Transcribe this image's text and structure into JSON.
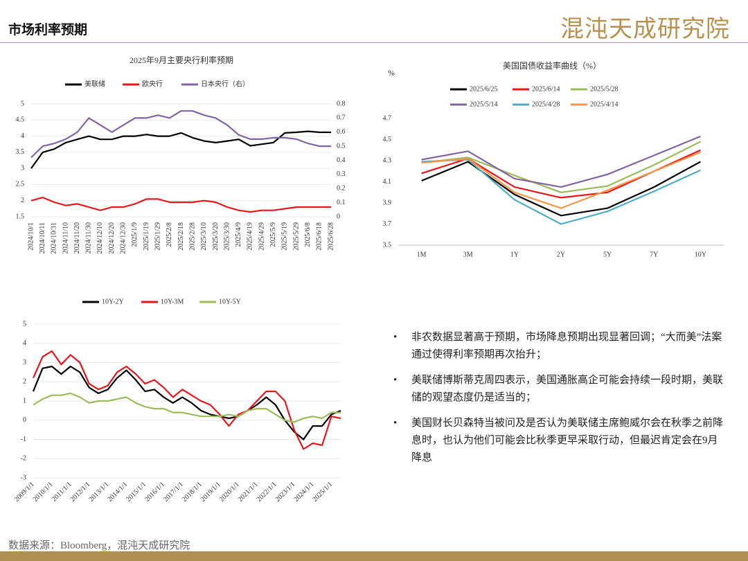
{
  "header": {
    "title": "市场利率预期",
    "logo": "混沌天成研究院"
  },
  "chart_data": [
    {
      "type": "line",
      "title": "2025年9月主要央行利率预期",
      "categories": [
        "2024/10/1",
        "2024/10/11",
        "2024/10/31",
        "2024/11/10",
        "2024/11/20",
        "2024/11/30",
        "2024/12/10",
        "2024/12/20",
        "2024/12/30",
        "2025/1/9",
        "2025/1/19",
        "2025/1/29",
        "2025/2/8",
        "2025/2/18",
        "2025/2/28",
        "2025/3/10",
        "2025/3/20",
        "2025/3/30",
        "2025/4/9",
        "2025/4/19",
        "2025/4/29",
        "2025/5/9",
        "2025/5/19",
        "2025/5/29",
        "2025/6/8",
        "2025/6/18",
        "2025/6/28"
      ],
      "series": [
        {
          "name": "美联储",
          "color": "#000000",
          "values": [
            3.0,
            3.5,
            3.6,
            3.8,
            3.9,
            4.0,
            3.9,
            3.9,
            4.0,
            4.0,
            4.05,
            4.0,
            4.0,
            4.1,
            3.95,
            3.85,
            3.8,
            3.85,
            3.9,
            3.7,
            3.75,
            3.8,
            4.1,
            4.12,
            4.15,
            4.12,
            4.12
          ]
        },
        {
          "name": "欧央行",
          "color": "#e8151b",
          "values": [
            2.0,
            2.1,
            1.95,
            1.85,
            1.9,
            1.8,
            1.7,
            1.8,
            1.8,
            1.9,
            2.05,
            2.05,
            1.95,
            1.95,
            1.95,
            2.0,
            1.95,
            1.8,
            1.7,
            1.65,
            1.7,
            1.7,
            1.75,
            1.8,
            1.8,
            1.8,
            1.8
          ]
        },
        {
          "name": "日本央行（右）",
          "color": "#8064a2",
          "axis": "y2",
          "values": [
            0.42,
            0.5,
            0.52,
            0.55,
            0.6,
            0.7,
            0.65,
            0.6,
            0.65,
            0.7,
            0.7,
            0.72,
            0.7,
            0.75,
            0.75,
            0.72,
            0.7,
            0.65,
            0.58,
            0.55,
            0.55,
            0.56,
            0.56,
            0.55,
            0.52,
            0.5,
            0.5
          ]
        }
      ],
      "ylim": [
        1.5,
        5
      ],
      "yticks": [
        1.5,
        2,
        2.5,
        3,
        3.5,
        4,
        4.5,
        5
      ],
      "y2lim": [
        0,
        0.8
      ],
      "y2ticks": [
        0,
        0.1,
        0.2,
        0.3,
        0.4,
        0.5,
        0.6,
        0.7,
        0.8
      ],
      "grid": true
    },
    {
      "type": "line",
      "title": "美国国债收益率曲线（%）",
      "y_label": "%",
      "categories": [
        "1M",
        "3M",
        "1Y",
        "2Y",
        "5Y",
        "7Y",
        "10Y"
      ],
      "series": [
        {
          "name": "2025/6/25",
          "color": "#000000",
          "values": [
            4.11,
            4.29,
            3.98,
            3.78,
            3.85,
            4.05,
            4.29
          ]
        },
        {
          "name": "2025/6/14",
          "color": "#e8151b",
          "values": [
            4.18,
            4.32,
            4.05,
            3.95,
            4.0,
            4.2,
            4.4
          ]
        },
        {
          "name": "2025/5/28",
          "color": "#9bbb59",
          "values": [
            4.28,
            4.33,
            4.16,
            4.0,
            4.06,
            4.26,
            4.48
          ]
        },
        {
          "name": "2025/5/14",
          "color": "#8064a2",
          "values": [
            4.31,
            4.39,
            4.13,
            4.05,
            4.17,
            4.35,
            4.53
          ]
        },
        {
          "name": "2025/4/28",
          "color": "#4bacc6",
          "values": [
            4.29,
            4.31,
            3.93,
            3.7,
            3.82,
            4.01,
            4.21
          ]
        },
        {
          "name": "2025/4/14",
          "color": "#f79646",
          "values": [
            4.28,
            4.32,
            4.0,
            3.85,
            4.02,
            4.2,
            4.38
          ]
        }
      ],
      "ylim": [
        3.5,
        4.7
      ],
      "yticks": [
        3.5,
        3.7,
        3.9,
        4.1,
        4.3,
        4.5,
        4.7
      ],
      "grid": false
    },
    {
      "type": "line",
      "categories": [
        "2009/1/1",
        null,
        "2010/1/1",
        null,
        "2011/1/1",
        null,
        "2012/1/1",
        null,
        "2013/1/1",
        null,
        "2014/1/1",
        null,
        "2015/1/1",
        null,
        "2016/1/1",
        null,
        "2017/1/1",
        null,
        "2018/1/1",
        null,
        "2019/1/1",
        null,
        "2020/1/1",
        null,
        "2021/1/1",
        null,
        "2022/1/1",
        null,
        "2023/1/1",
        null,
        "2024/1/1",
        null,
        "2025/1/1",
        null
      ],
      "series": [
        {
          "name": "10Y-2Y",
          "color": "#000000",
          "values": [
            1.5,
            2.7,
            2.8,
            2.4,
            2.8,
            2.5,
            1.7,
            1.4,
            1.6,
            2.2,
            2.6,
            2.1,
            1.5,
            1.6,
            1.2,
            0.9,
            1.2,
            0.9,
            0.5,
            0.3,
            0.2,
            0.1,
            0.2,
            0.5,
            0.8,
            1.2,
            0.8,
            0.0,
            -0.6,
            -1.0,
            -0.3,
            -0.3,
            0.3,
            0.5
          ]
        },
        {
          "name": "10Y-3M",
          "color": "#e8151b",
          "values": [
            2.2,
            3.3,
            3.6,
            2.9,
            3.4,
            3.0,
            1.9,
            1.6,
            1.8,
            2.5,
            2.8,
            2.4,
            1.9,
            2.1,
            1.7,
            1.2,
            1.6,
            1.3,
            1.0,
            0.8,
            0.3,
            -0.3,
            0.3,
            0.5,
            1.0,
            1.5,
            1.5,
            1.0,
            -0.5,
            -1.5,
            -1.2,
            -1.3,
            0.2,
            0.1
          ]
        },
        {
          "name": "10Y-5Y",
          "color": "#9bbb59",
          "values": [
            0.8,
            1.1,
            1.3,
            1.3,
            1.4,
            1.2,
            0.9,
            1.0,
            1.0,
            1.1,
            1.2,
            0.9,
            0.7,
            0.6,
            0.6,
            0.4,
            0.4,
            0.3,
            0.2,
            0.2,
            0.2,
            0.3,
            0.2,
            0.5,
            0.6,
            0.6,
            0.3,
            0.0,
            -0.1,
            0.1,
            0.2,
            0.1,
            0.4,
            0.4
          ]
        }
      ],
      "ylim": [
        -3,
        5
      ],
      "yticks": [
        -3,
        -2,
        -1,
        0,
        1,
        2,
        3,
        4,
        5
      ],
      "grid": true
    }
  ],
  "bullets": [
    "非农数据显著高于预期，市场降息预期出现显著回调；“大而美”法案通过使得利率预期再次抬升；",
    "美联储博斯蒂克周四表示，美国通胀高企可能会持续一段时期，美联储的观望态度仍是适当的；",
    "美国财长贝森特当被问及是否认为美联储主席鲍威尔会在秋季之前降息时，也认为他们可能会比秋季更早采取行动，但最迟肯定会在9月降息"
  ],
  "source": "数据来源：Bloomberg，混沌天成研究院"
}
